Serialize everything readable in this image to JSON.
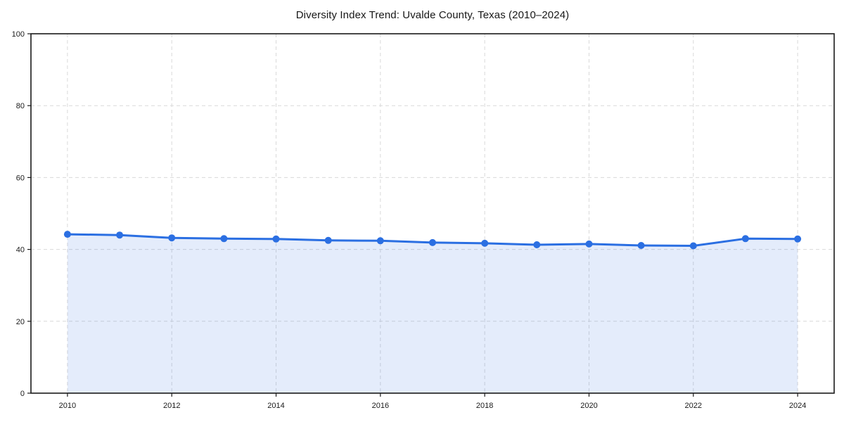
{
  "chart_data": {
    "type": "area",
    "title": "Diversity Index Trend: Uvalde County, Texas (2010–2024)",
    "xlabel": "",
    "ylabel": "",
    "x": [
      2010,
      2011,
      2012,
      2013,
      2014,
      2015,
      2016,
      2017,
      2018,
      2019,
      2020,
      2021,
      2022,
      2023,
      2024
    ],
    "series": [
      {
        "name": "Diversity Index",
        "values": [
          44.2,
          44.0,
          43.2,
          43.0,
          42.9,
          42.5,
          42.4,
          41.9,
          41.7,
          41.3,
          41.5,
          41.1,
          41.0,
          43.0,
          42.9
        ]
      }
    ],
    "xlim": [
      2009.3,
      2024.7
    ],
    "ylim": [
      0,
      100
    ],
    "x_ticks": [
      2010,
      2012,
      2014,
      2016,
      2018,
      2020,
      2022,
      2024
    ],
    "y_ticks": [
      0,
      20,
      40,
      60,
      80,
      100
    ],
    "grid": "dashed",
    "legend": "none",
    "marker": "circle",
    "line_color": "#2b6fe2",
    "fill_color": "rgba(43,111,226,0.13)",
    "grid_color": "#d9d9d9",
    "axis_color": "#1a1a1a",
    "text_color": "#1a1a1a",
    "background_color": "#ffffff"
  }
}
